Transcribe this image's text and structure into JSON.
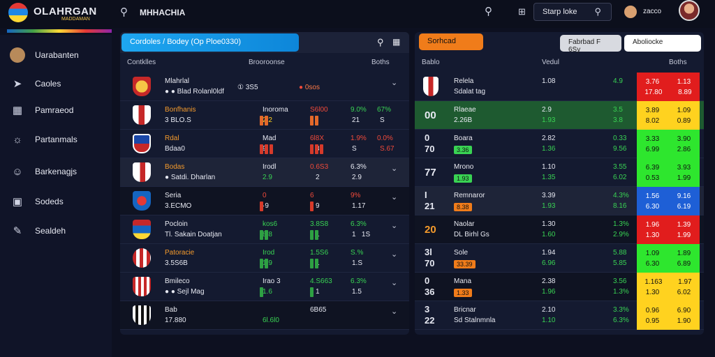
{
  "header": {
    "brand": "OLAHRGAN",
    "brand_sub": "MADDAMAN",
    "title": "MHHACHIA",
    "box_label": "Starp loke",
    "user_name": "zacco"
  },
  "sidebar": {
    "items": [
      {
        "label": "Uarabanten",
        "icon": "avatar-icon"
      },
      {
        "label": "Caoles",
        "icon": "pin-icon"
      },
      {
        "label": "Pamraeod",
        "icon": "table-icon"
      },
      {
        "label": "Partanmals",
        "icon": "compass-icon"
      },
      {
        "label": "Barkenagjs",
        "icon": "users-icon"
      },
      {
        "label": "Sodeds",
        "icon": "grid-icon"
      },
      {
        "label": "Sealdeh",
        "icon": "pen-icon"
      }
    ]
  },
  "left_panel": {
    "tab_label": "Cordoles / Bodey  (Op Ploe0330)",
    "col_team": "Contklles",
    "col_mid": "Brooroonse",
    "col_right": "Boths",
    "rows": [
      {
        "crest": "c1",
        "name": "Mlahrlal",
        "name_style": "w",
        "sub": "● ● Blad Rolanl0ldf",
        "badge": "① 3S5",
        "c_dot": "●",
        "c_text": "0sos",
        "v1": "",
        "v2": "",
        "v3": "",
        "v4": "",
        "v5": "",
        "v6": "",
        "bars": "",
        "style": "normal"
      },
      {
        "crest": "c2",
        "name": "Bonfhanis",
        "name_style": "o",
        "sub": "3 BLO.S",
        "v1": "Inoroma",
        "v2": "2.2",
        "v3": "S6l00",
        "v4": "",
        "v5": "9.0%",
        "v6": "21",
        "v7": "67%",
        "v8": "S",
        "bars": "oo",
        "c1": "white",
        "c2": "yellow",
        "c3": "red",
        "c5": "green",
        "c7": "green",
        "style": "normal"
      },
      {
        "crest": "c3",
        "name": "Rdal",
        "name_style": "o",
        "sub": "Bdaa0",
        "v1": "Mad",
        "v2": "9",
        "v3": "6l8X",
        "v4": "3",
        "v5": "1.9%",
        "v6": "S",
        "v7": "0.0%",
        "v8": "S.67",
        "bars": "rrr",
        "c1": "white",
        "c2": "white",
        "c3": "red",
        "c5": "red",
        "c7": "red",
        "style": "normal"
      },
      {
        "crest": "c4",
        "name": "Bodas",
        "name_style": "o",
        "sub": "● Satdi. Dharlan",
        "v1": "Irodl",
        "v2": "2.9",
        "v3": "0.6S3",
        "v4": "2",
        "v5": "6.3%",
        "v6": "2.9",
        "v7": "",
        "v8": "",
        "bars": "",
        "c1": "white",
        "c2": "green",
        "c3": "red",
        "c5": "white",
        "c7": "",
        "chev": "⌄",
        "style": "hl"
      },
      {
        "crest": "c5",
        "name": "Seria",
        "name_style": "w",
        "sub": "3.ECMO",
        "v1": "0",
        "v2": "·9",
        "v3": "6",
        "v4": "9",
        "v5": "9%",
        "v6": "1.17",
        "v7": "",
        "v8": "",
        "bars": "r",
        "c1": "red",
        "c2": "white",
        "c3": "red",
        "c5": "red",
        "c7": "",
        "chev": "⌄",
        "style": "dark"
      },
      {
        "crest": "c6",
        "name": "Pocloin",
        "name_style": "w",
        "sub": "Tl. Sakain Doatjan",
        "v1": "kos6",
        "v2": "8.8",
        "v3": "3.8S8",
        "v4": "1",
        "v5": "6.3%",
        "v6": "1   1S",
        "v7": "",
        "v8": "",
        "bars": "gg",
        "c1": "green",
        "c2": "green",
        "c3": "green",
        "c5": "green",
        "c7": "",
        "chev": "⌄",
        "style": "normal"
      },
      {
        "crest": "c7",
        "name": "Patoracie",
        "name_style": "o",
        "sub": "3.5S6B",
        "v1": "Irod",
        "v2": "1.9",
        "v3": "1.5S6",
        "v4": "1",
        "v5": "S.%",
        "v6": "1.S",
        "v7": "",
        "v8": "",
        "bars": "gg",
        "c1": "green",
        "c2": "green",
        "c3": "green",
        "c5": "green",
        "c7": "",
        "chev": "⌄",
        "style": "normal"
      },
      {
        "crest": "c8",
        "name": "Bmileco",
        "name_style": "w",
        "sub": "● ● Sejl Mag",
        "v1": "Irao 3",
        "v2": "1.6",
        "v3": "4.S663",
        "v4": "1",
        "v5": "6.3%",
        "v6": "1.5",
        "v7": "",
        "v8": "",
        "bars": "g",
        "c1": "white",
        "c2": "green",
        "c3": "green",
        "c5": "green",
        "c7": "",
        "chev": "⌄",
        "style": "normal"
      },
      {
        "crest": "c9",
        "name": "Bab",
        "name_style": "w",
        "sub": "17.880",
        "v1": "",
        "v2": "6l.6l0",
        "v3": "6B65",
        "v4": "",
        "v5": "",
        "v6": "",
        "v7": "",
        "v8": "",
        "bars": "",
        "c1": "",
        "c2": "green",
        "c3": "white",
        "c5": "",
        "c7": "",
        "chev": "⌄",
        "style": "dark"
      }
    ]
  },
  "right_panel": {
    "btn_orange": "Sorhcad",
    "btn_gray": "Fabrbad F 6Sy",
    "btn_white": "Aboliocke",
    "col_1": "Bablo",
    "col_2": "Vedul",
    "col_3": "Boths",
    "rows": [
      {
        "big": "",
        "crest": true,
        "name": "Relela",
        "sub": "Sdalat tag",
        "pill": "",
        "pill_color": "",
        "m1": "1.08",
        "m2": "",
        "s1": "4.9",
        "s2": "",
        "heat": "r",
        "h1": "3.76",
        "h2": "1.13",
        "h3": "17.80",
        "h4": "8.89",
        "style": "normal"
      },
      {
        "big": "00",
        "big_style": "w",
        "name": "Rlaeae",
        "sub": "2.26B",
        "pill": "",
        "m1": "2.9",
        "m2": "1.93",
        "s1": "3.5",
        "s2": "3.8",
        "heat": "y",
        "h1": "3.89",
        "h2": "1.09",
        "h3": "8.02",
        "h4": "0.89",
        "style": "g"
      },
      {
        "big": "0\n70",
        "big_style": "w",
        "name": "Boara",
        "sub": "",
        "pill": "3.36",
        "pill_color": "g",
        "m1": "2.82",
        "m2": "1.36",
        "s1": "0.33",
        "s2": "9.56",
        "heat": "g",
        "h1": "3.33",
        "h2": "3.90",
        "h3": "6.99",
        "h4": "2.86",
        "style": "normal"
      },
      {
        "big": "77",
        "big_style": "w",
        "name": "Mrono",
        "sub": "",
        "pill": "1.93",
        "pill_color": "g",
        "m1": "1.10",
        "m2": "1.35",
        "s1": "3.55",
        "s2": "6.02",
        "heat": "g",
        "h1": "6.39",
        "h2": "3.93",
        "h3": "0.53",
        "h4": "1.99",
        "style": "normal"
      },
      {
        "big": "I\n21",
        "big_style": "w",
        "name": "Remnaror",
        "sub": "",
        "pill": "8.38",
        "pill_color": "o",
        "m1": "3.39",
        "m2": "1.93",
        "s1": "4.3%",
        "s2": "8.16",
        "heat": "b",
        "h1": "1.56",
        "h2": "9.16",
        "h3": "6.30",
        "h4": "6.19",
        "style": "hl"
      },
      {
        "big": "20",
        "big_style": "o",
        "name": "Naolar",
        "sub": "DL Birhl Gs",
        "pill": "",
        "m1": "1.30",
        "m2": "1.60",
        "s1": "1.3%",
        "s2": "2.9%",
        "heat": "r",
        "h1": "1.96",
        "h2": "1.39",
        "h3": "1.30",
        "h4": "1.99",
        "style": "dk"
      },
      {
        "big": "3l\n70",
        "big_style": "w",
        "name": "Sole",
        "sub": "",
        "pill": "33.39",
        "pill_color": "o",
        "m1": "1.94",
        "m2": "6.96",
        "s1": "5.88",
        "s2": "5.85",
        "heat": "g",
        "h1": "1.09",
        "h2": "1.89",
        "h3": "6.30",
        "h4": "6.89",
        "style": "normal"
      },
      {
        "big": "0\n36",
        "big_style": "w",
        "name": "Mana",
        "sub": "",
        "pill": "1.33",
        "pill_color": "o",
        "m1": "2.38",
        "m2": "1.96",
        "s1": "3.56",
        "s2": "1.3%",
        "heat": "y",
        "h1": "1.163",
        "h2": "1.97",
        "h3": "1.30",
        "h4": "6.02",
        "style": "dk"
      },
      {
        "big": "3\n22",
        "big_style": "w",
        "name": "Bricnar",
        "sub": "Sd Stalnmnla",
        "pill": "",
        "m1": "2.10",
        "m2": "1.10",
        "s1": "3.3%",
        "s2": "6.3%",
        "heat": "y",
        "h1": "0.96",
        "h2": "6.90",
        "h3": "0.95",
        "h4": "1.90",
        "style": "normal"
      }
    ]
  }
}
